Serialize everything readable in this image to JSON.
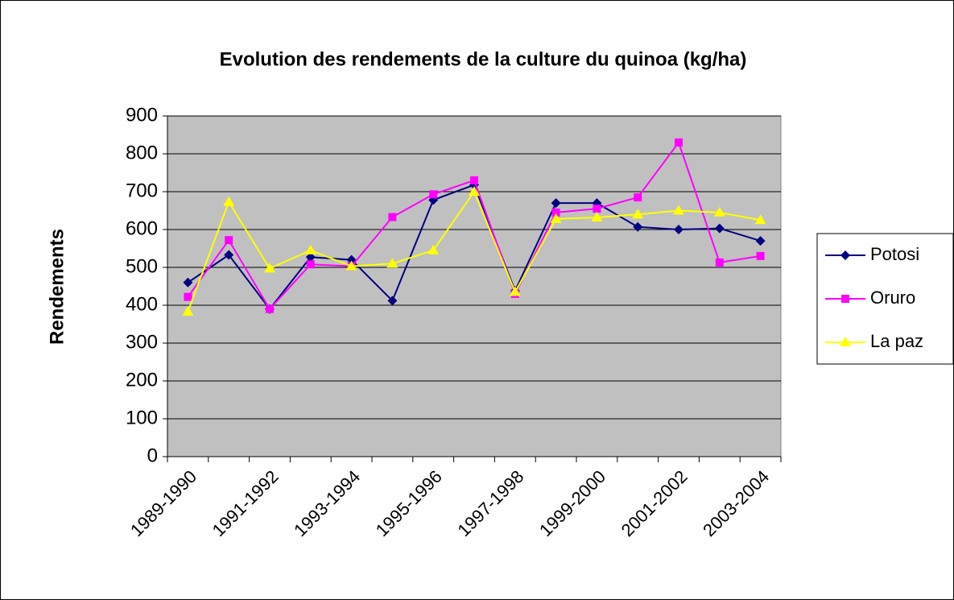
{
  "chart_data": {
    "type": "line",
    "title": "Evolution des rendements de la culture du quinoa (kg/ha)",
    "y_label": "Rendements",
    "categories": [
      "1989-1990",
      null,
      "1991-1992",
      null,
      "1993-1994",
      null,
      "1995-1996",
      null,
      "1997-1998",
      null,
      "1999-2000",
      null,
      "2001-2002",
      null,
      "2003-2004"
    ],
    "series": [
      {
        "name": "Potosi",
        "color": "#000080",
        "marker": "diamond",
        "values": [
          460,
          533,
          390,
          527,
          520,
          412,
          678,
          718,
          438,
          670,
          670,
          607,
          600,
          603,
          570
        ]
      },
      {
        "name": "Oruro",
        "color": "#ff00ff",
        "marker": "square",
        "values": [
          422,
          572,
          390,
          508,
          503,
          633,
          693,
          730,
          430,
          645,
          655,
          685,
          830,
          513,
          530
        ]
      },
      {
        "name": "La paz",
        "color": "#ffff00",
        "marker": "triangle",
        "values": [
          383,
          673,
          497,
          545,
          503,
          510,
          545,
          700,
          435,
          628,
          632,
          640,
          650,
          645,
          625
        ]
      }
    ],
    "ylim": [
      0,
      900
    ],
    "yticks": [
      0,
      100,
      200,
      300,
      400,
      500,
      600,
      700,
      800,
      900
    ],
    "grid": true,
    "legend": "right",
    "plot_background": "#c0c0c0"
  }
}
